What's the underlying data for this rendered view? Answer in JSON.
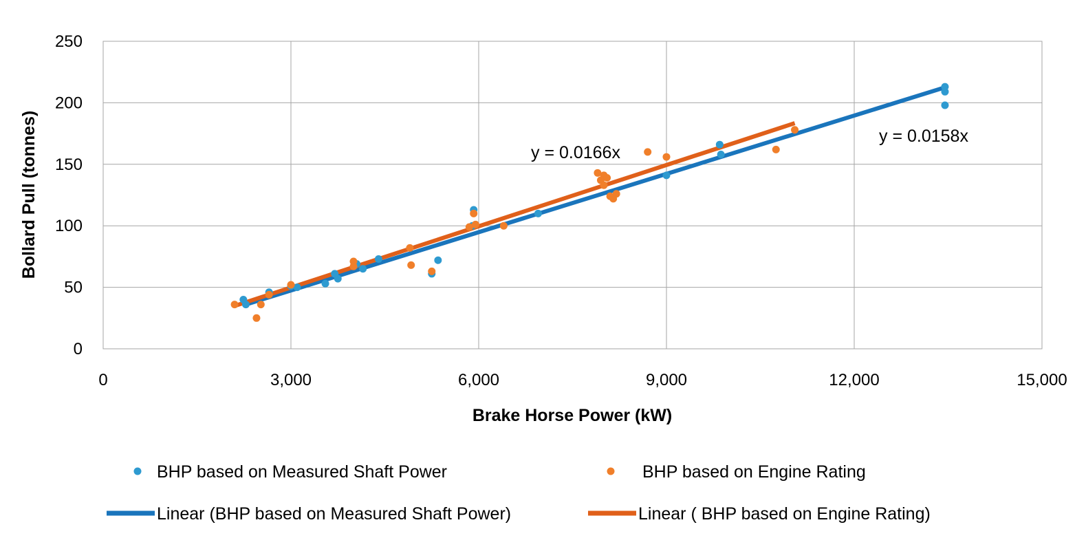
{
  "chart_data": {
    "type": "scatter",
    "title": "",
    "xlabel": "Brake Horse Power (kW)",
    "ylabel": "Bollard Pull (tonnes)",
    "xlim": [
      0,
      15000
    ],
    "ylim": [
      0,
      250
    ],
    "x_ticks": [
      0,
      3000,
      6000,
      9000,
      12000,
      15000
    ],
    "x_tick_labels": [
      "0",
      "3,000",
      "6,000",
      "9,000",
      "12,000",
      "15,000"
    ],
    "y_ticks": [
      0,
      50,
      100,
      150,
      200,
      250
    ],
    "y_tick_labels": [
      "0",
      "50",
      "100",
      "150",
      "200",
      "250"
    ],
    "grid": true,
    "legend_position": "bottom",
    "series": [
      {
        "name": "BHP based on Measured Shaft Power",
        "kind": "scatter",
        "color": "#2E9AD0",
        "points": [
          [
            2240,
            40
          ],
          [
            2280,
            36
          ],
          [
            2650,
            46
          ],
          [
            3000,
            51
          ],
          [
            3100,
            50
          ],
          [
            3550,
            53
          ],
          [
            3700,
            61
          ],
          [
            3750,
            57
          ],
          [
            4050,
            69
          ],
          [
            4150,
            65
          ],
          [
            4400,
            73
          ],
          [
            5250,
            61
          ],
          [
            5350,
            72
          ],
          [
            5900,
            100
          ],
          [
            5920,
            113
          ],
          [
            6950,
            110
          ],
          [
            9000,
            141
          ],
          [
            9850,
            166
          ],
          [
            9870,
            158
          ],
          [
            13450,
            213
          ],
          [
            13450,
            209
          ],
          [
            13450,
            198
          ]
        ]
      },
      {
        "name": "BHP based on Engine Rating",
        "kind": "scatter",
        "color": "#F07F2A",
        "points": [
          [
            2100,
            36
          ],
          [
            2450,
            25
          ],
          [
            2520,
            36
          ],
          [
            2650,
            44
          ],
          [
            3000,
            52
          ],
          [
            4000,
            71
          ],
          [
            4000,
            67
          ],
          [
            4900,
            82
          ],
          [
            4920,
            68
          ],
          [
            5250,
            63
          ],
          [
            5850,
            99
          ],
          [
            5920,
            110
          ],
          [
            5950,
            101
          ],
          [
            6400,
            100
          ],
          [
            7900,
            143
          ],
          [
            7950,
            137
          ],
          [
            8000,
            141
          ],
          [
            8050,
            139
          ],
          [
            8000,
            133
          ],
          [
            8100,
            124
          ],
          [
            8150,
            122
          ],
          [
            8200,
            126
          ],
          [
            8700,
            160
          ],
          [
            9000,
            156
          ],
          [
            10750,
            162
          ],
          [
            11050,
            178
          ]
        ]
      },
      {
        "name": "Linear (BHP based on Measured Shaft Power)",
        "kind": "trendline",
        "color": "#1A75BC",
        "slope": 0.0158,
        "x_range": [
          2240,
          13450
        ],
        "equation": "y = 0.0158x"
      },
      {
        "name": "Linear ( BHP based on Engine Rating)",
        "kind": "trendline",
        "color": "#E0601A",
        "slope": 0.0166,
        "x_range": [
          2100,
          11050
        ],
        "equation": "y = 0.0166x"
      }
    ]
  }
}
